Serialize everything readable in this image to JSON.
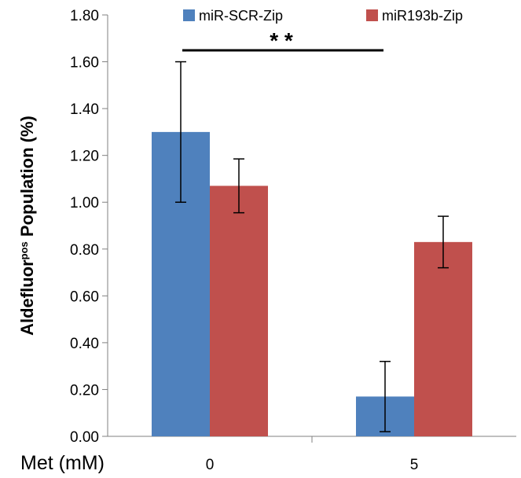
{
  "chart_data": {
    "type": "bar",
    "xlabel": "Met (mM)",
    "ylabel_main": "Aldefluor",
    "ylabel_sup": "pos",
    "ylabel_rest": " Population (%)",
    "ylim": [
      0,
      1.8
    ],
    "yticks": [
      "0.00",
      "0.20",
      "0.40",
      "0.60",
      "0.80",
      "1.00",
      "1.20",
      "1.40",
      "1.60",
      "1.80"
    ],
    "categories": [
      "0",
      "5"
    ],
    "series": [
      {
        "name": "miR-SCR-Zip",
        "color": "#4f81bd",
        "values": [
          1.3,
          0.17
        ],
        "errors": [
          0.3,
          0.15
        ]
      },
      {
        "name": "miR193b-Zip",
        "color": "#c0504d",
        "values": [
          1.07,
          0.83
        ],
        "errors": [
          0.115,
          0.11
        ]
      }
    ],
    "significance": {
      "label": "* *"
    },
    "grid": false,
    "legend": "top"
  }
}
